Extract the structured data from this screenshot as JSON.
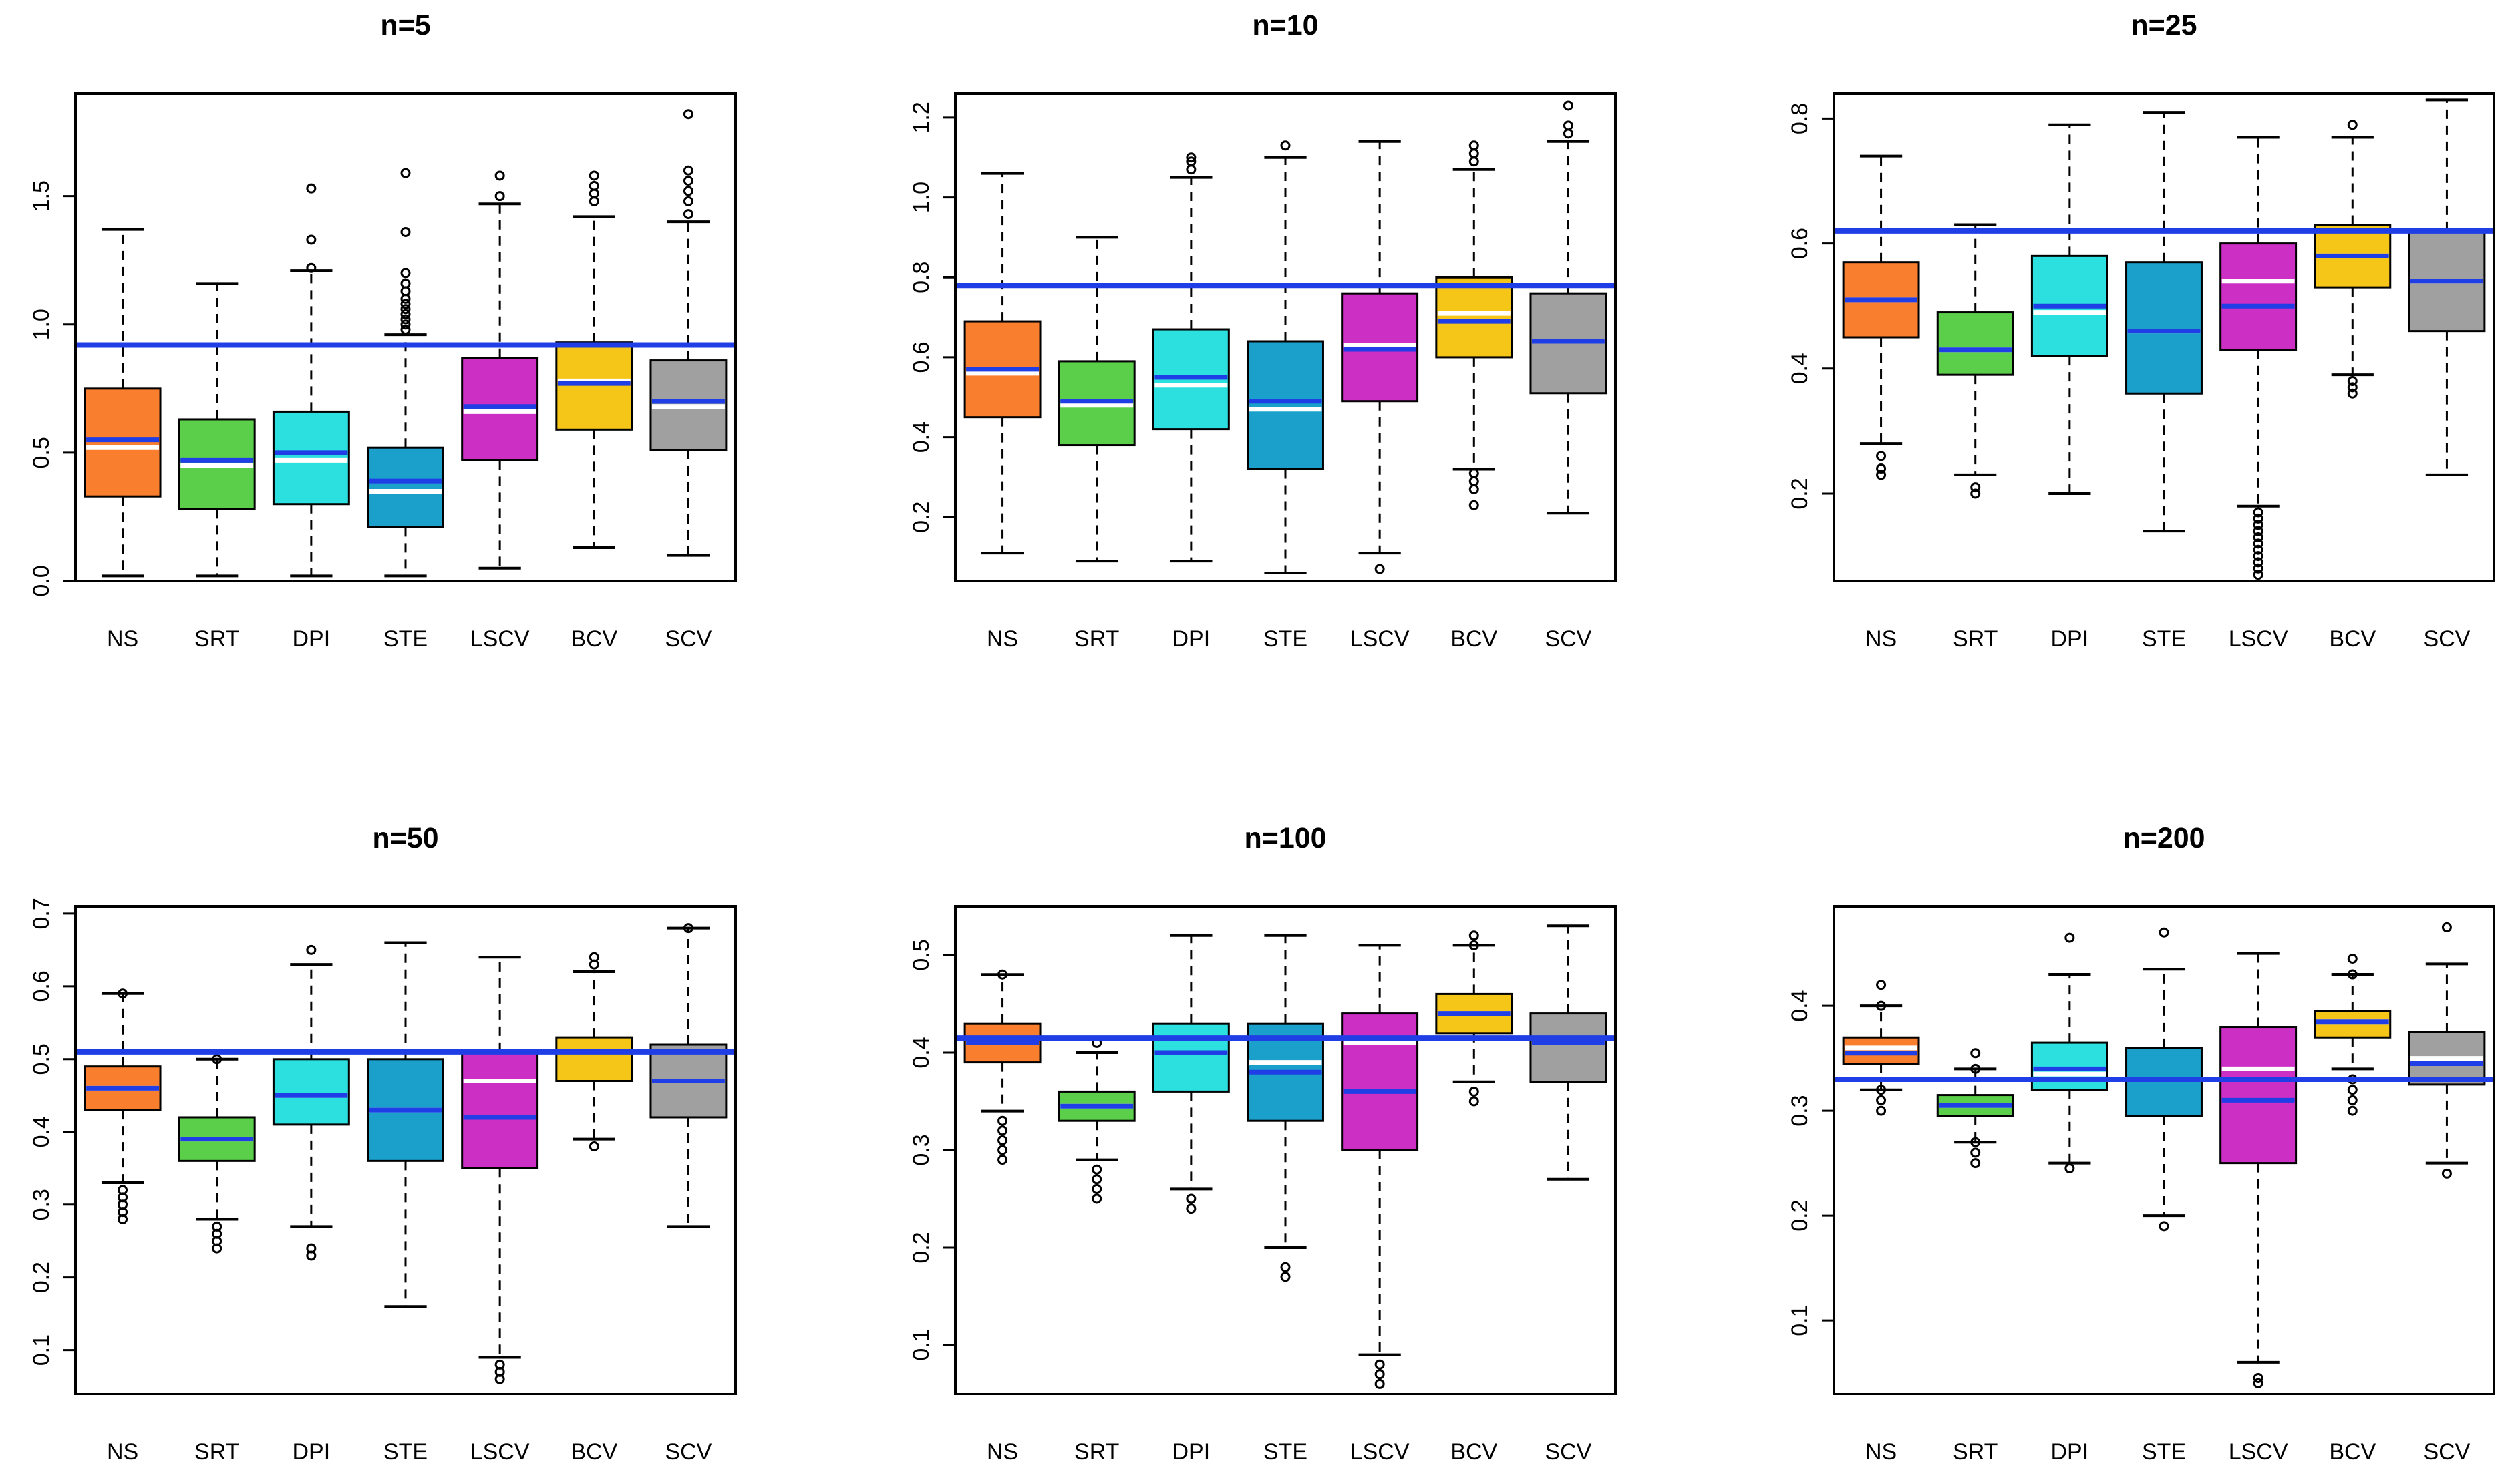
{
  "colors": {
    "NS": "#f97f2e",
    "SRT": "#5bcf4a",
    "DPI": "#2ce0e0",
    "STE": "#1ba0cc",
    "LSCV": "#cc2fc4",
    "BCV": "#f5c518",
    "SCV": "#a0a0a0",
    "reference_line": "#1f3ee6",
    "median_line": "#ffffff",
    "mean_line": "#1f3ee6"
  },
  "chart_data": [
    {
      "type": "box",
      "title": "n=5",
      "categories": [
        "NS",
        "SRT",
        "DPI",
        "STE",
        "LSCV",
        "BCV",
        "SCV"
      ],
      "ylim": [
        0.0,
        1.9
      ],
      "yticks": [
        0.0,
        0.5,
        1.0,
        1.5
      ],
      "ytick_labels": [
        "0.0",
        "0.5",
        "1.0",
        "1.5"
      ],
      "reference_line": 0.92,
      "boxes": [
        {
          "low": 0.02,
          "q1": 0.33,
          "median": 0.52,
          "mean": 0.55,
          "q3": 0.75,
          "high": 1.37,
          "outliers": []
        },
        {
          "low": 0.02,
          "q1": 0.28,
          "median": 0.45,
          "mean": 0.47,
          "q3": 0.63,
          "high": 1.16,
          "outliers": []
        },
        {
          "low": 0.02,
          "q1": 0.3,
          "median": 0.47,
          "mean": 0.5,
          "q3": 0.66,
          "high": 1.21,
          "outliers": [
            1.22,
            1.33,
            1.53
          ]
        },
        {
          "low": 0.02,
          "q1": 0.21,
          "median": 0.35,
          "mean": 0.39,
          "q3": 0.52,
          "high": 0.96,
          "outliers": [
            0.98,
            1.0,
            1.02,
            1.04,
            1.06,
            1.08,
            1.1,
            1.13,
            1.16,
            1.2,
            1.36,
            1.59
          ]
        },
        {
          "low": 0.05,
          "q1": 0.47,
          "median": 0.66,
          "mean": 0.68,
          "q3": 0.87,
          "high": 1.47,
          "outliers": [
            1.5,
            1.58
          ]
        },
        {
          "low": 0.13,
          "q1": 0.59,
          "median": 0.78,
          "mean": 0.77,
          "q3": 0.93,
          "high": 1.42,
          "outliers": [
            1.48,
            1.51,
            1.54,
            1.58
          ]
        },
        {
          "low": 0.1,
          "q1": 0.51,
          "median": 0.68,
          "mean": 0.7,
          "q3": 0.86,
          "high": 1.4,
          "outliers": [
            1.43,
            1.48,
            1.52,
            1.56,
            1.6,
            1.82
          ]
        }
      ]
    },
    {
      "type": "box",
      "title": "n=10",
      "categories": [
        "NS",
        "SRT",
        "DPI",
        "STE",
        "LSCV",
        "BCV",
        "SCV"
      ],
      "ylim": [
        0.04,
        1.26
      ],
      "yticks": [
        0.2,
        0.4,
        0.6,
        0.8,
        1.0,
        1.2
      ],
      "ytick_labels": [
        "0.2",
        "0.4",
        "0.6",
        "0.8",
        "1.0",
        "1.2"
      ],
      "reference_line": 0.78,
      "boxes": [
        {
          "low": 0.11,
          "q1": 0.45,
          "median": 0.56,
          "mean": 0.57,
          "q3": 0.69,
          "high": 1.06,
          "outliers": []
        },
        {
          "low": 0.09,
          "q1": 0.38,
          "median": 0.48,
          "mean": 0.49,
          "q3": 0.59,
          "high": 0.9,
          "outliers": []
        },
        {
          "low": 0.09,
          "q1": 0.42,
          "median": 0.53,
          "mean": 0.55,
          "q3": 0.67,
          "high": 1.05,
          "outliers": [
            1.07,
            1.09,
            1.1
          ]
        },
        {
          "low": 0.06,
          "q1": 0.32,
          "median": 0.47,
          "mean": 0.49,
          "q3": 0.64,
          "high": 1.1,
          "outliers": [
            1.13
          ]
        },
        {
          "low": 0.11,
          "q1": 0.49,
          "median": 0.63,
          "mean": 0.62,
          "q3": 0.76,
          "high": 1.14,
          "outliers": [
            0.07
          ]
        },
        {
          "low": 0.32,
          "q1": 0.6,
          "median": 0.71,
          "mean": 0.69,
          "q3": 0.8,
          "high": 1.07,
          "outliers": [
            0.23,
            0.27,
            0.29,
            0.31,
            1.09,
            1.11,
            1.13
          ]
        },
        {
          "low": 0.21,
          "q1": 0.51,
          "median": 0.64,
          "mean": 0.64,
          "q3": 0.76,
          "high": 1.14,
          "outliers": [
            1.16,
            1.18,
            1.23
          ]
        }
      ]
    },
    {
      "type": "box",
      "title": "n=25",
      "categories": [
        "NS",
        "SRT",
        "DPI",
        "STE",
        "LSCV",
        "BCV",
        "SCV"
      ],
      "ylim": [
        0.06,
        0.84
      ],
      "yticks": [
        0.2,
        0.4,
        0.6,
        0.8
      ],
      "ytick_labels": [
        "0.2",
        "0.4",
        "0.6",
        "0.8"
      ],
      "reference_line": 0.62,
      "boxes": [
        {
          "low": 0.28,
          "q1": 0.45,
          "median": 0.51,
          "mean": 0.51,
          "q3": 0.57,
          "high": 0.74,
          "outliers": [
            0.23,
            0.24,
            0.26
          ]
        },
        {
          "low": 0.23,
          "q1": 0.39,
          "median": 0.43,
          "mean": 0.43,
          "q3": 0.49,
          "high": 0.63,
          "outliers": [
            0.2,
            0.21
          ]
        },
        {
          "low": 0.2,
          "q1": 0.42,
          "median": 0.49,
          "mean": 0.5,
          "q3": 0.58,
          "high": 0.79,
          "outliers": []
        },
        {
          "low": 0.14,
          "q1": 0.36,
          "median": 0.46,
          "mean": 0.46,
          "q3": 0.57,
          "high": 0.81,
          "outliers": []
        },
        {
          "low": 0.18,
          "q1": 0.43,
          "median": 0.54,
          "mean": 0.5,
          "q3": 0.6,
          "high": 0.77,
          "outliers": [
            0.07,
            0.08,
            0.09,
            0.1,
            0.11,
            0.12,
            0.13,
            0.14,
            0.15,
            0.16,
            0.17
          ]
        },
        {
          "low": 0.39,
          "q1": 0.53,
          "median": 0.58,
          "mean": 0.58,
          "q3": 0.63,
          "high": 0.77,
          "outliers": [
            0.36,
            0.37,
            0.38,
            0.79
          ]
        },
        {
          "low": 0.23,
          "q1": 0.46,
          "median": 0.54,
          "mean": 0.54,
          "q3": 0.62,
          "high": 0.83,
          "outliers": []
        }
      ]
    },
    {
      "type": "box",
      "title": "n=50",
      "categories": [
        "NS",
        "SRT",
        "DPI",
        "STE",
        "LSCV",
        "BCV",
        "SCV"
      ],
      "ylim": [
        0.04,
        0.71
      ],
      "yticks": [
        0.1,
        0.2,
        0.3,
        0.4,
        0.5,
        0.6,
        0.7
      ],
      "ytick_labels": [
        "0.1",
        "0.2",
        "0.3",
        "0.4",
        "0.5",
        "0.6",
        "0.7"
      ],
      "reference_line": 0.51,
      "boxes": [
        {
          "low": 0.33,
          "q1": 0.43,
          "median": 0.46,
          "mean": 0.46,
          "q3": 0.49,
          "high": 0.59,
          "outliers": [
            0.28,
            0.29,
            0.3,
            0.31,
            0.32,
            0.59
          ]
        },
        {
          "low": 0.28,
          "q1": 0.36,
          "median": 0.39,
          "mean": 0.39,
          "q3": 0.42,
          "high": 0.5,
          "outliers": [
            0.24,
            0.25,
            0.26,
            0.27,
            0.5
          ]
        },
        {
          "low": 0.27,
          "q1": 0.41,
          "median": 0.45,
          "mean": 0.45,
          "q3": 0.5,
          "high": 0.63,
          "outliers": [
            0.23,
            0.24,
            0.65
          ]
        },
        {
          "low": 0.16,
          "q1": 0.36,
          "median": 0.43,
          "mean": 0.43,
          "q3": 0.5,
          "high": 0.66,
          "outliers": []
        },
        {
          "low": 0.09,
          "q1": 0.35,
          "median": 0.47,
          "mean": 0.42,
          "q3": 0.51,
          "high": 0.64,
          "outliers": [
            0.06,
            0.07,
            0.08
          ]
        },
        {
          "low": 0.39,
          "q1": 0.47,
          "median": 0.51,
          "mean": 0.51,
          "q3": 0.53,
          "high": 0.62,
          "outliers": [
            0.38,
            0.63,
            0.64
          ]
        },
        {
          "low": 0.27,
          "q1": 0.42,
          "median": 0.47,
          "mean": 0.47,
          "q3": 0.52,
          "high": 0.68,
          "outliers": [
            0.68
          ]
        }
      ]
    },
    {
      "type": "box",
      "title": "n=100",
      "categories": [
        "NS",
        "SRT",
        "DPI",
        "STE",
        "LSCV",
        "BCV",
        "SCV"
      ],
      "ylim": [
        0.05,
        0.55
      ],
      "yticks": [
        0.1,
        0.2,
        0.3,
        0.4,
        0.5
      ],
      "ytick_labels": [
        "0.1",
        "0.2",
        "0.3",
        "0.4",
        "0.5"
      ],
      "reference_line": 0.415,
      "boxes": [
        {
          "low": 0.34,
          "q1": 0.39,
          "median": 0.41,
          "mean": 0.41,
          "q3": 0.43,
          "high": 0.48,
          "outliers": [
            0.29,
            0.3,
            0.31,
            0.32,
            0.33,
            0.48
          ]
        },
        {
          "low": 0.29,
          "q1": 0.33,
          "median": 0.345,
          "mean": 0.345,
          "q3": 0.36,
          "high": 0.4,
          "outliers": [
            0.25,
            0.26,
            0.27,
            0.28,
            0.41
          ]
        },
        {
          "low": 0.26,
          "q1": 0.36,
          "median": 0.4,
          "mean": 0.4,
          "q3": 0.43,
          "high": 0.52,
          "outliers": [
            0.24,
            0.25
          ]
        },
        {
          "low": 0.2,
          "q1": 0.33,
          "median": 0.39,
          "mean": 0.38,
          "q3": 0.43,
          "high": 0.52,
          "outliers": [
            0.17,
            0.18
          ]
        },
        {
          "low": 0.09,
          "q1": 0.3,
          "median": 0.41,
          "mean": 0.36,
          "q3": 0.44,
          "high": 0.51,
          "outliers": [
            0.06,
            0.07,
            0.08
          ]
        },
        {
          "low": 0.37,
          "q1": 0.42,
          "median": 0.44,
          "mean": 0.44,
          "q3": 0.46,
          "high": 0.51,
          "outliers": [
            0.35,
            0.36,
            0.51,
            0.52
          ]
        },
        {
          "low": 0.27,
          "q1": 0.37,
          "median": 0.41,
          "mean": 0.41,
          "q3": 0.44,
          "high": 0.53,
          "outliers": []
        }
      ]
    },
    {
      "type": "box",
      "title": "n=200",
      "categories": [
        "NS",
        "SRT",
        "DPI",
        "STE",
        "LSCV",
        "BCV",
        "SCV"
      ],
      "ylim": [
        0.03,
        0.495
      ],
      "yticks": [
        0.1,
        0.2,
        0.3,
        0.4
      ],
      "ytick_labels": [
        "0.1",
        "0.2",
        "0.3",
        "0.4"
      ],
      "reference_line": 0.33,
      "boxes": [
        {
          "low": 0.32,
          "q1": 0.345,
          "median": 0.36,
          "mean": 0.355,
          "q3": 0.37,
          "high": 0.4,
          "outliers": [
            0.3,
            0.31,
            0.32,
            0.4,
            0.42
          ]
        },
        {
          "low": 0.27,
          "q1": 0.295,
          "median": 0.305,
          "mean": 0.305,
          "q3": 0.315,
          "high": 0.34,
          "outliers": [
            0.25,
            0.26,
            0.27,
            0.34,
            0.355
          ]
        },
        {
          "low": 0.25,
          "q1": 0.32,
          "median": 0.335,
          "mean": 0.34,
          "q3": 0.365,
          "high": 0.43,
          "outliers": [
            0.245,
            0.465
          ]
        },
        {
          "low": 0.2,
          "q1": 0.295,
          "median": 0.33,
          "mean": 0.33,
          "q3": 0.36,
          "high": 0.435,
          "outliers": [
            0.19,
            0.47
          ]
        },
        {
          "low": 0.06,
          "q1": 0.25,
          "median": 0.34,
          "mean": 0.31,
          "q3": 0.38,
          "high": 0.45,
          "outliers": [
            0.04,
            0.045
          ]
        },
        {
          "low": 0.34,
          "q1": 0.37,
          "median": 0.385,
          "mean": 0.385,
          "q3": 0.395,
          "high": 0.43,
          "outliers": [
            0.3,
            0.31,
            0.32,
            0.33,
            0.43,
            0.445
          ]
        },
        {
          "low": 0.25,
          "q1": 0.325,
          "median": 0.35,
          "mean": 0.345,
          "q3": 0.375,
          "high": 0.44,
          "outliers": [
            0.24,
            0.475
          ]
        }
      ]
    }
  ]
}
